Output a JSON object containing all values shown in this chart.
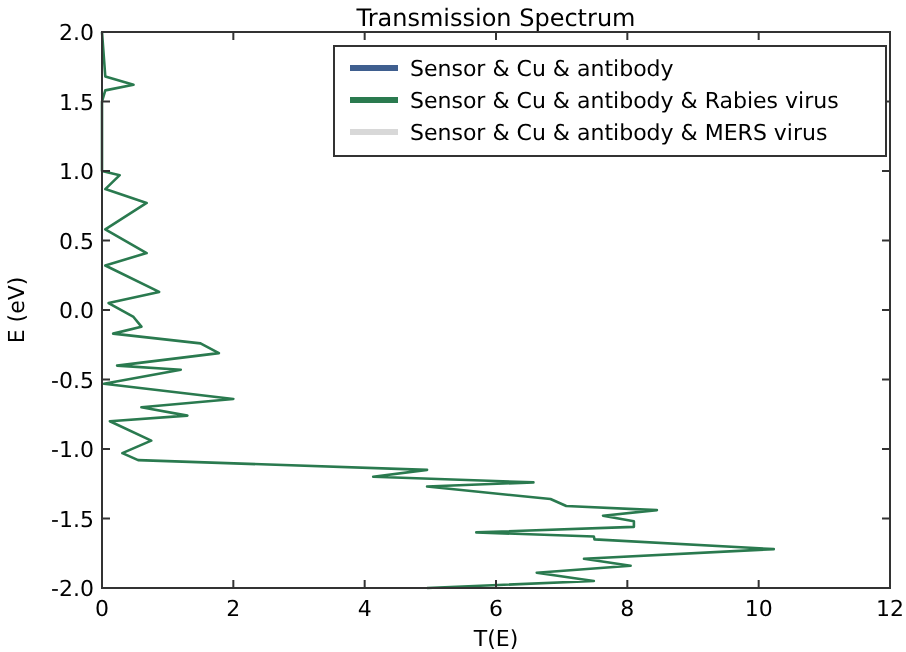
{
  "chart_data": {
    "type": "line",
    "title": "Transmission Spectrum",
    "xlabel": "T(E)",
    "ylabel": "E (eV)",
    "xlim": [
      0,
      12
    ],
    "xticks": [
      0,
      2,
      4,
      6,
      8,
      10,
      12
    ],
    "ylim": [
      -2,
      2
    ],
    "yticks": [
      {
        "value": -2,
        "label": "-2.0"
      },
      {
        "value": -1.5,
        "label": "-1.5"
      },
      {
        "value": -1,
        "label": "-1.0"
      },
      {
        "value": -0.5,
        "label": "-0.5"
      },
      {
        "value": 0,
        "label": "0.0"
      },
      {
        "value": 0.5,
        "label": "0.5"
      },
      {
        "value": 1,
        "label": "1.0"
      },
      {
        "value": 1.5,
        "label": "1.5"
      },
      {
        "value": 2,
        "label": "2.0"
      }
    ],
    "grid": false,
    "legend": "top right",
    "line_style": "solid",
    "series": [
      {
        "name": "Sensor & Cu & antibody",
        "color": "#3f5f8f"
      },
      {
        "name": "Sensor & Cu & antibody & Rabies virus",
        "color": "#2a7a4f",
        "x": [
          0,
          0.05,
          0.48,
          0.05,
          0,
          0,
          0.27,
          0.05,
          0.68,
          0.05,
          0.68,
          0.05,
          0.87,
          0.1,
          0.48,
          0.6,
          0.17,
          1.5,
          1.78,
          0.23,
          1.2,
          0.03,
          2.0,
          0.6,
          1.3,
          0.12,
          0.75,
          0.31,
          0.55,
          4.95,
          4.13,
          6.57,
          4.95,
          6.83,
          7.07,
          8.45,
          7.63,
          8.1,
          8.1,
          5.7,
          7.49,
          7.5,
          10.23,
          7.34,
          8.05,
          6.62,
          7.49,
          4.95
        ],
        "values": [
          2.0,
          1.68,
          1.62,
          1.58,
          1.5,
          1.0,
          0.97,
          0.87,
          0.77,
          0.58,
          0.41,
          0.32,
          0.13,
          0.05,
          -0.05,
          -0.12,
          -0.17,
          -0.24,
          -0.31,
          -0.4,
          -0.43,
          -0.53,
          -0.64,
          -0.7,
          -0.76,
          -0.8,
          -0.94,
          -1.03,
          -1.08,
          -1.15,
          -1.2,
          -1.24,
          -1.27,
          -1.36,
          -1.41,
          -1.44,
          -1.48,
          -1.52,
          -1.56,
          -1.6,
          -1.63,
          -1.65,
          -1.72,
          -1.79,
          -1.84,
          -1.89,
          -1.95,
          -2.0
        ]
      },
      {
        "name": "Sensor & Cu & antibody & MERS virus",
        "color": "#d8d8d8"
      }
    ]
  }
}
